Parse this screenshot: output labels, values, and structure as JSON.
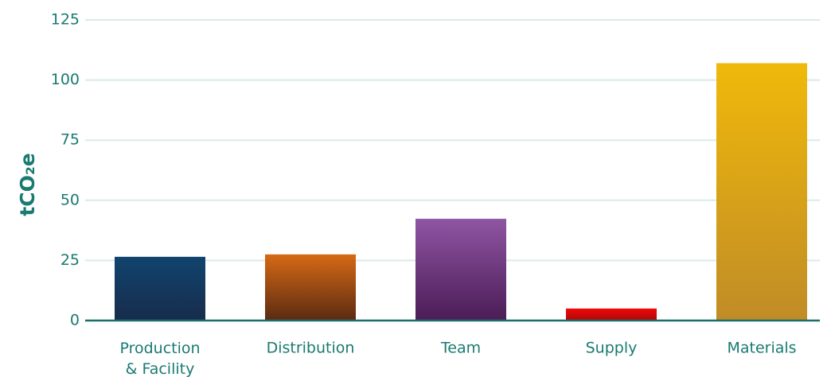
{
  "chart_data": {
    "type": "bar",
    "ylabel": "tCO₂e",
    "categories": [
      "Production\n& Facility",
      "Distribution",
      "Team",
      "Supply",
      "Materials"
    ],
    "values": [
      26.5,
      27.5,
      42.3,
      5,
      107
    ],
    "colors": [
      [
        "#11446e",
        "#172c4c"
      ],
      [
        "#d66a14",
        "#5a2a12"
      ],
      [
        "#8f55a3",
        "#4b1c56"
      ],
      [
        "#ef0a0a",
        "#b00606"
      ],
      [
        "#f0b90b",
        "#c08c26"
      ]
    ],
    "ylim": [
      0,
      125
    ],
    "yticks": [
      0,
      25,
      50,
      75,
      100,
      125
    ],
    "grid": true
  }
}
